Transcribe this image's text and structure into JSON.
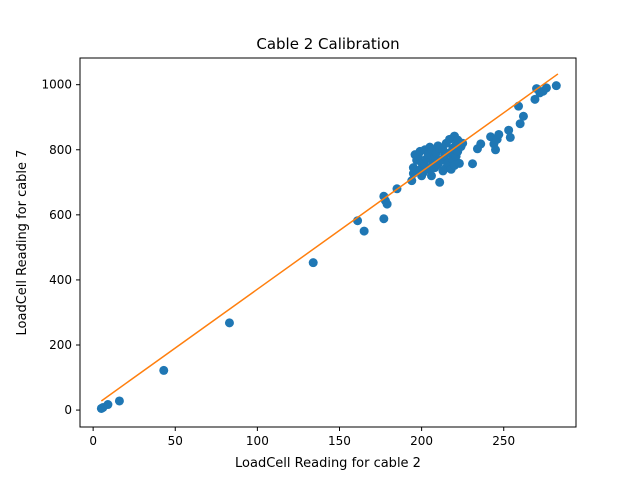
{
  "chart_data": {
    "type": "scatter",
    "title": "Cable 2 Calibration",
    "xlabel": "LoadCell Reading for cable 2",
    "ylabel": "LoadCell Reading for cable 7",
    "xlim": [
      -8,
      294
    ],
    "ylim": [
      -52,
      1082
    ],
    "xticks": [
      0,
      50,
      100,
      150,
      200,
      250
    ],
    "yticks": [
      0,
      200,
      400,
      600,
      800,
      1000
    ],
    "grid": false,
    "legend": "none",
    "colors": {
      "points": "#1f77b4",
      "fit": "#ff7f0e"
    },
    "fit_line": {
      "x": [
        5,
        283
      ],
      "y": [
        28,
        1033
      ]
    },
    "points": [
      [
        5,
        5
      ],
      [
        6,
        8
      ],
      [
        9,
        17
      ],
      [
        16,
        28
      ],
      [
        43,
        122
      ],
      [
        83,
        268
      ],
      [
        134,
        453
      ],
      [
        161,
        582
      ],
      [
        165,
        550
      ],
      [
        177,
        588
      ],
      [
        177,
        657
      ],
      [
        178,
        643
      ],
      [
        179,
        633
      ],
      [
        185,
        680
      ],
      [
        194,
        705
      ],
      [
        195,
        727
      ],
      [
        195,
        745
      ],
      [
        196,
        785
      ],
      [
        197,
        768
      ],
      [
        198,
        780
      ],
      [
        199,
        795
      ],
      [
        199,
        738
      ],
      [
        200,
        720
      ],
      [
        200,
        760
      ],
      [
        201,
        730
      ],
      [
        202,
        800
      ],
      [
        202,
        752
      ],
      [
        203,
        772
      ],
      [
        204,
        787
      ],
      [
        205,
        808
      ],
      [
        205,
        740
      ],
      [
        206,
        720
      ],
      [
        206,
        800
      ],
      [
        207,
        760
      ],
      [
        208,
        778
      ],
      [
        208,
        745
      ],
      [
        209,
        790
      ],
      [
        210,
        812
      ],
      [
        210,
        755
      ],
      [
        211,
        700
      ],
      [
        211,
        805
      ],
      [
        212,
        768
      ],
      [
        213,
        735
      ],
      [
        213,
        800
      ],
      [
        214,
        780
      ],
      [
        215,
        820
      ],
      [
        215,
        745
      ],
      [
        216,
        760
      ],
      [
        217,
        790
      ],
      [
        217,
        832
      ],
      [
        218,
        740
      ],
      [
        219,
        805
      ],
      [
        219,
        770
      ],
      [
        220,
        842
      ],
      [
        220,
        752
      ],
      [
        221,
        815
      ],
      [
        221,
        780
      ],
      [
        222,
        830
      ],
      [
        222,
        795
      ],
      [
        223,
        758
      ],
      [
        224,
        810
      ],
      [
        225,
        820
      ],
      [
        231,
        757
      ],
      [
        234,
        803
      ],
      [
        236,
        818
      ],
      [
        242,
        840
      ],
      [
        244,
        818
      ],
      [
        245,
        800
      ],
      [
        246,
        832
      ],
      [
        247,
        847
      ],
      [
        253,
        860
      ],
      [
        254,
        838
      ],
      [
        259,
        934
      ],
      [
        260,
        880
      ],
      [
        262,
        903
      ],
      [
        269,
        955
      ],
      [
        270,
        988
      ],
      [
        272,
        975
      ],
      [
        274,
        980
      ],
      [
        276,
        990
      ],
      [
        282,
        997
      ]
    ]
  }
}
